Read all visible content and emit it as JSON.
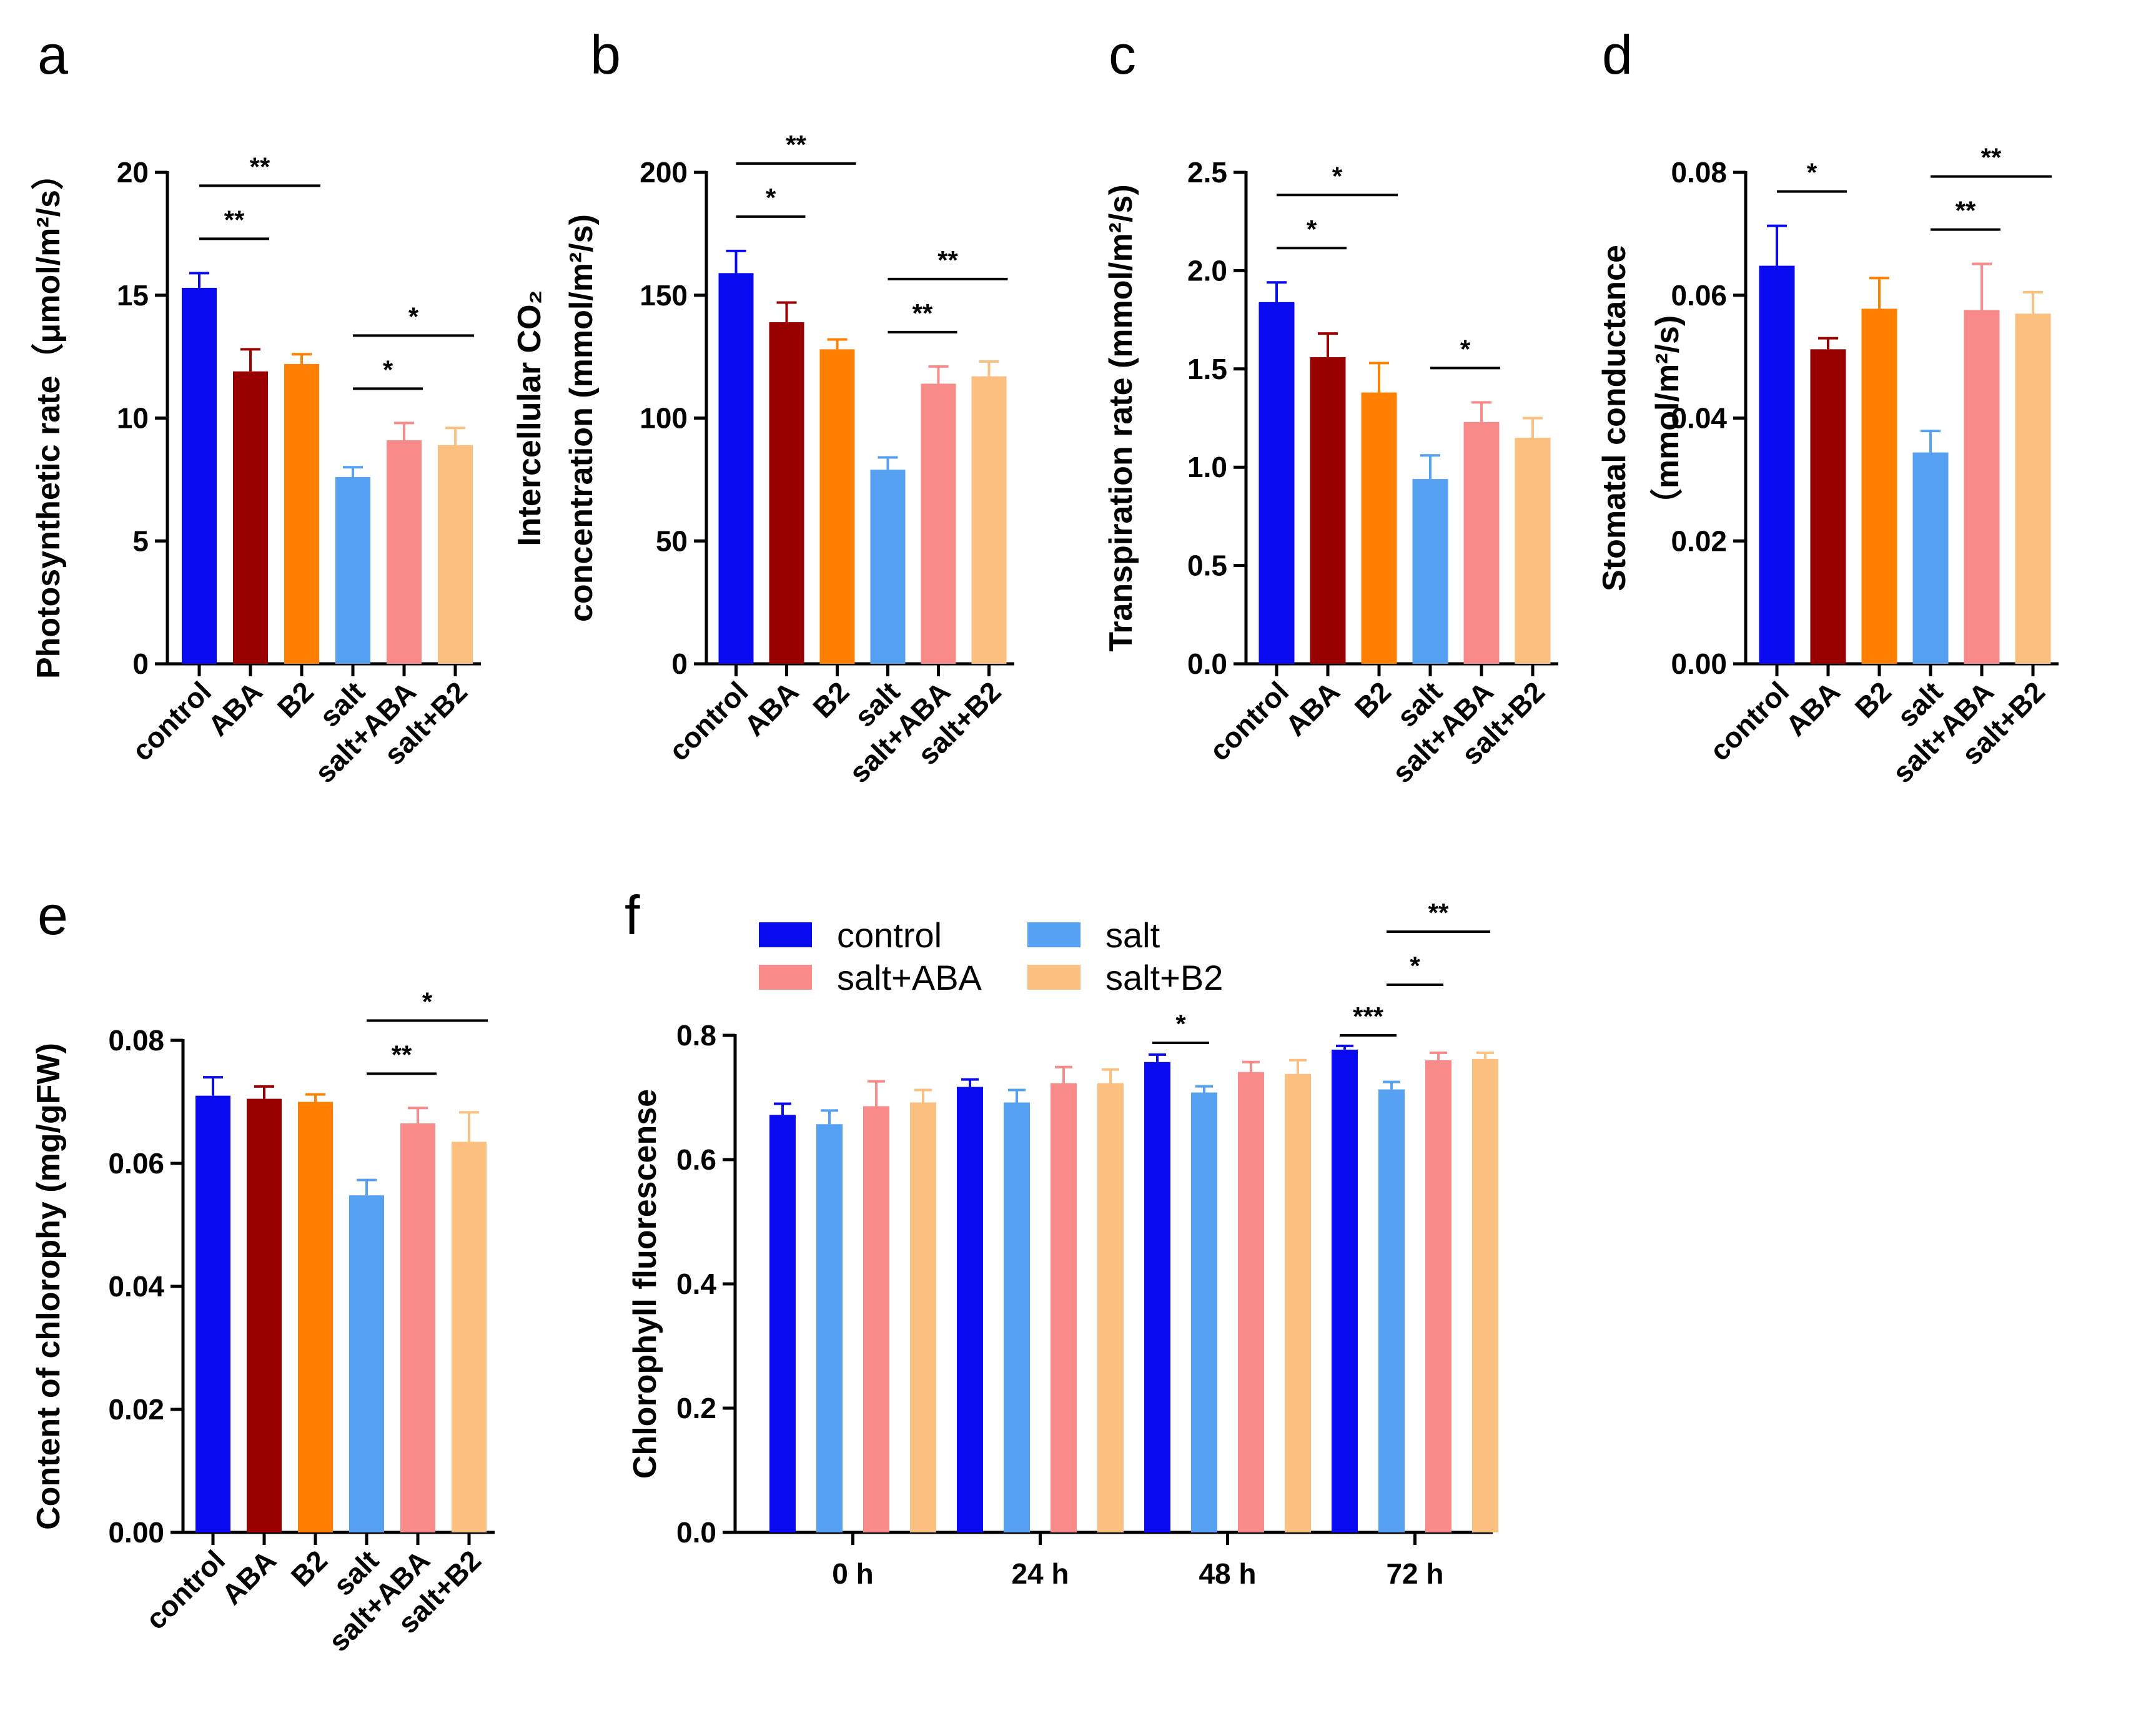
{
  "colors": {
    "control": "#0a0af0",
    "ABA": "#990000",
    "B2": "#ff7f00",
    "salt": "#55a0f0",
    "salt+ABA": "#f88a8a",
    "salt+B2": "#fbbf80",
    "axis": "#000000"
  },
  "chart_data": [
    {
      "panel": "a",
      "type": "bar",
      "categories": [
        "control",
        "ABA",
        "B2",
        "salt",
        "salt+ABA",
        "salt+B2"
      ],
      "values": [
        15.3,
        11.9,
        12.2,
        7.6,
        9.1,
        8.9
      ],
      "errors": [
        0.6,
        0.9,
        0.4,
        0.4,
        0.7,
        0.7
      ],
      "ylabel": "Photosynthetic rate（μmol/m²/s）",
      "ylim": [
        0,
        20
      ],
      "yticks": [
        "0",
        "5",
        "10",
        "15",
        "20"
      ],
      "significance": [
        {
          "from": "control",
          "to": "ABA",
          "label": "**"
        },
        {
          "from": "control",
          "to": "B2",
          "label": "**"
        },
        {
          "from": "salt",
          "to": "salt+ABA",
          "label": "*"
        },
        {
          "from": "salt",
          "to": "salt+B2",
          "label": "*"
        }
      ]
    },
    {
      "panel": "b",
      "type": "bar",
      "categories": [
        "control",
        "ABA",
        "B2",
        "salt",
        "salt+ABA",
        "salt+B2"
      ],
      "values": [
        159,
        139,
        128,
        79,
        114,
        117
      ],
      "errors": [
        9,
        8,
        4,
        5,
        7,
        6
      ],
      "ylabel_line1": "Intercellular CO₂",
      "ylabel_line2": "concentration (mmol/m²/s)",
      "ylim": [
        0,
        200
      ],
      "yticks": [
        "0",
        "50",
        "100",
        "150",
        "200"
      ],
      "significance": [
        {
          "from": "control",
          "to": "ABA",
          "label": "*"
        },
        {
          "from": "control",
          "to": "B2",
          "label": "**"
        },
        {
          "from": "salt",
          "to": "salt+ABA",
          "label": "**"
        },
        {
          "from": "salt",
          "to": "salt+B2",
          "label": "**"
        }
      ]
    },
    {
      "panel": "c",
      "type": "bar",
      "categories": [
        "control",
        "ABA",
        "B2",
        "salt",
        "salt+ABA",
        "salt+B2"
      ],
      "values": [
        1.84,
        1.56,
        1.38,
        0.94,
        1.23,
        1.15
      ],
      "errors": [
        0.1,
        0.12,
        0.15,
        0.12,
        0.1,
        0.1
      ],
      "ylabel": "Transpiration rate (mmol/m²/s)",
      "ylim": [
        0,
        2.5
      ],
      "yticks": [
        "0.0",
        "0.5",
        "1.0",
        "1.5",
        "2.0",
        "2.5"
      ],
      "significance": [
        {
          "from": "control",
          "to": "ABA",
          "label": "*"
        },
        {
          "from": "control",
          "to": "B2",
          "label": "*"
        },
        {
          "from": "salt",
          "to": "salt+ABA",
          "label": "*"
        }
      ]
    },
    {
      "panel": "d",
      "type": "bar",
      "categories": [
        "control",
        "ABA",
        "B2",
        "salt",
        "salt+ABA",
        "salt+B2"
      ],
      "values": [
        0.0648,
        0.0512,
        0.0578,
        0.0344,
        0.0576,
        0.057
      ],
      "errors": [
        0.0065,
        0.0018,
        0.005,
        0.0035,
        0.0075,
        0.0035
      ],
      "ylabel_line1": "Stomatal conductance",
      "ylabel_line2": "（mmol/m²/s)",
      "ylim": [
        0,
        0.08
      ],
      "yticks": [
        "0.00",
        "0.02",
        "0.04",
        "0.06",
        "0.08"
      ],
      "significance": [
        {
          "from": "control",
          "to": "ABA",
          "label": "*"
        },
        {
          "from": "salt",
          "to": "salt+ABA",
          "label": "**"
        },
        {
          "from": "salt",
          "to": "salt+B2",
          "label": "**"
        }
      ]
    },
    {
      "panel": "e",
      "type": "bar",
      "categories": [
        "control",
        "ABA",
        "B2",
        "salt",
        "salt+ABA",
        "salt+B2"
      ],
      "values": [
        0.071,
        0.0705,
        0.07,
        0.0548,
        0.0665,
        0.0635
      ],
      "errors": [
        0.003,
        0.002,
        0.0012,
        0.0025,
        0.0025,
        0.0048
      ],
      "ylabel": "Content of chlorophy (mg/gFW)",
      "ylim": [
        0,
        0.08
      ],
      "yticks": [
        "0.00",
        "0.02",
        "0.04",
        "0.06",
        "0.08"
      ],
      "significance": [
        {
          "from": "salt",
          "to": "salt+ABA",
          "label": "**"
        },
        {
          "from": "salt",
          "to": "salt+B2",
          "label": "*"
        }
      ]
    },
    {
      "panel": "f",
      "type": "bar",
      "categories": [
        "0 h",
        "24 h",
        "48 h",
        "72 h"
      ],
      "series": [
        {
          "name": "control",
          "values": [
            0.672,
            0.717,
            0.757,
            0.777
          ],
          "errors": [
            0.018,
            0.012,
            0.012,
            0.006
          ]
        },
        {
          "name": "salt",
          "values": [
            0.657,
            0.692,
            0.708,
            0.713
          ],
          "errors": [
            0.022,
            0.02,
            0.01,
            0.012
          ]
        },
        {
          "name": "salt+ABA",
          "values": [
            0.686,
            0.723,
            0.741,
            0.76
          ],
          "errors": [
            0.04,
            0.026,
            0.016,
            0.012
          ]
        },
        {
          "name": "salt+B2",
          "values": [
            0.692,
            0.723,
            0.738,
            0.762
          ],
          "errors": [
            0.02,
            0.022,
            0.022,
            0.01
          ]
        }
      ],
      "ylabel": "Chlorophyll fluorescense",
      "ylim": [
        0,
        0.8
      ],
      "yticks": [
        "0.0",
        "0.2",
        "0.4",
        "0.6",
        "0.8"
      ],
      "significance": [
        {
          "group": "48 h",
          "from": "control",
          "to": "salt",
          "label": "*"
        },
        {
          "group": "72 h",
          "from": "control",
          "to": "salt",
          "label": "***"
        },
        {
          "group": "72 h",
          "from": "salt",
          "to": "salt+ABA",
          "label": "*"
        },
        {
          "group": "72 h",
          "from": "salt",
          "to": "salt+B2",
          "label": "**"
        }
      ],
      "legend": [
        [
          "control",
          "salt"
        ],
        [
          "salt+ABA",
          "salt+B2"
        ]
      ]
    }
  ]
}
